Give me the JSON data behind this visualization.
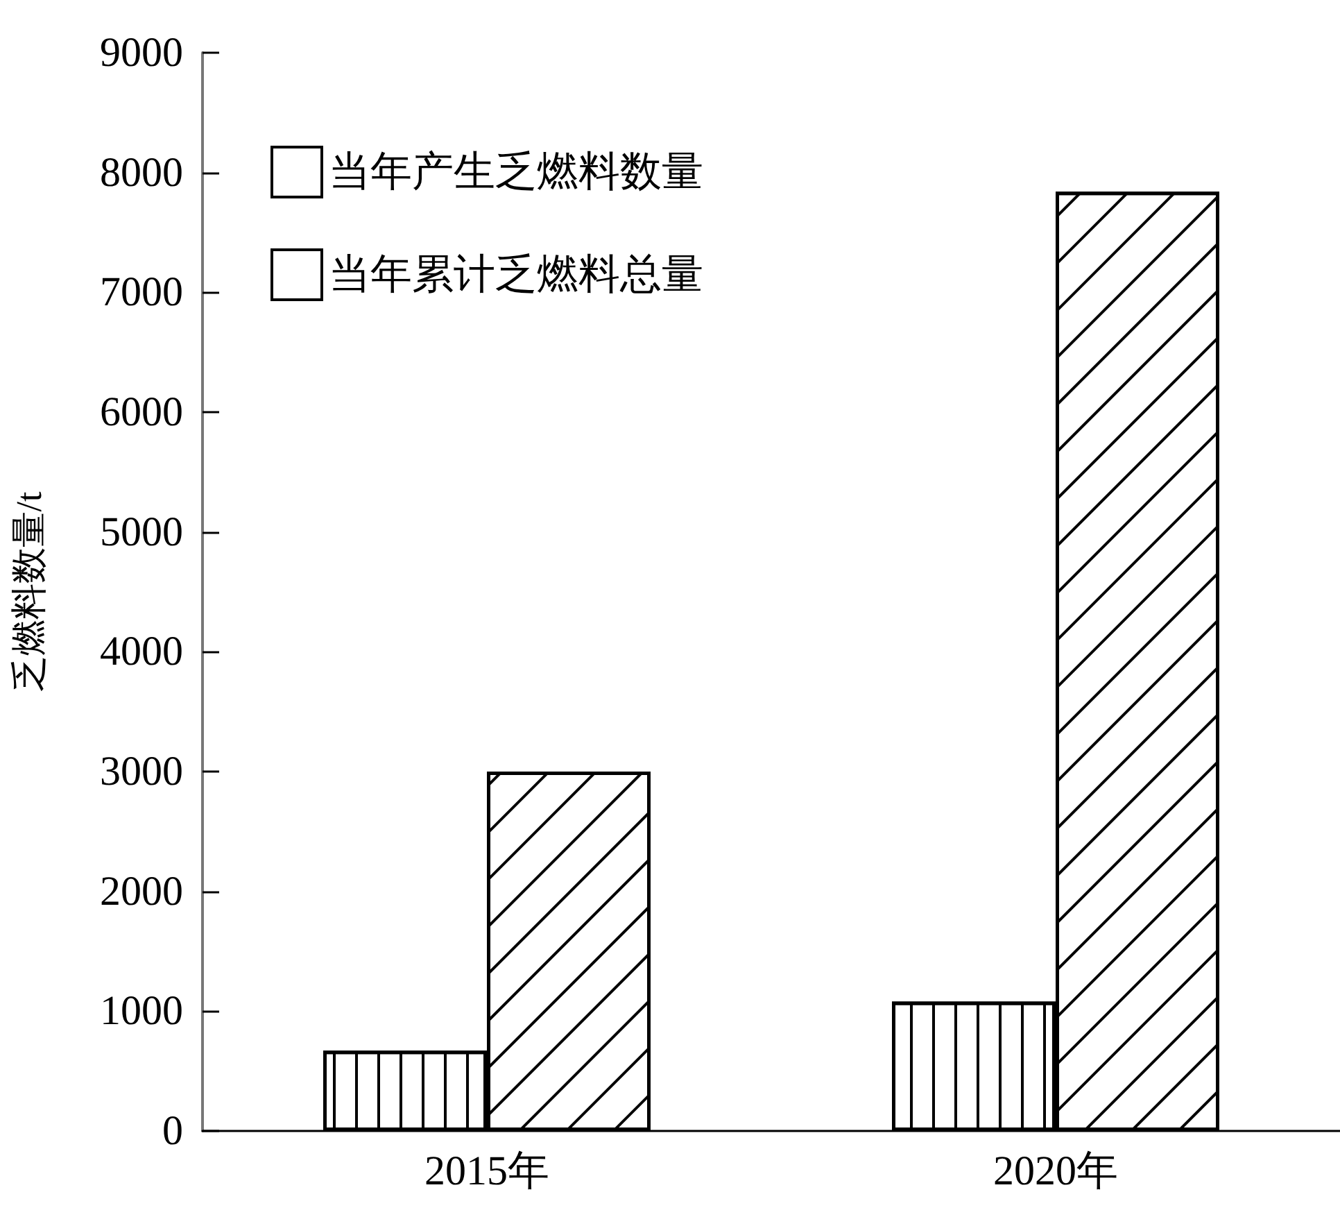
{
  "chart_data": {
    "type": "bar",
    "ylabel": "乏燃料数量/t",
    "categories": [
      "2015年",
      "2020年"
    ],
    "series": [
      {
        "name": "当年产生乏燃料数量",
        "color": "#ffffff",
        "values": [
          670,
          1080
        ]
      },
      {
        "name": "当年累计乏燃料总量",
        "color": "#ffffff",
        "values": [
          3000,
          7840
        ]
      }
    ],
    "ylim": [
      0,
      9000
    ],
    "yticks": [
      0,
      1000,
      2000,
      3000,
      4000,
      5000,
      6000,
      7000,
      8000,
      9000
    ],
    "grid": false,
    "legend": "top left"
  }
}
